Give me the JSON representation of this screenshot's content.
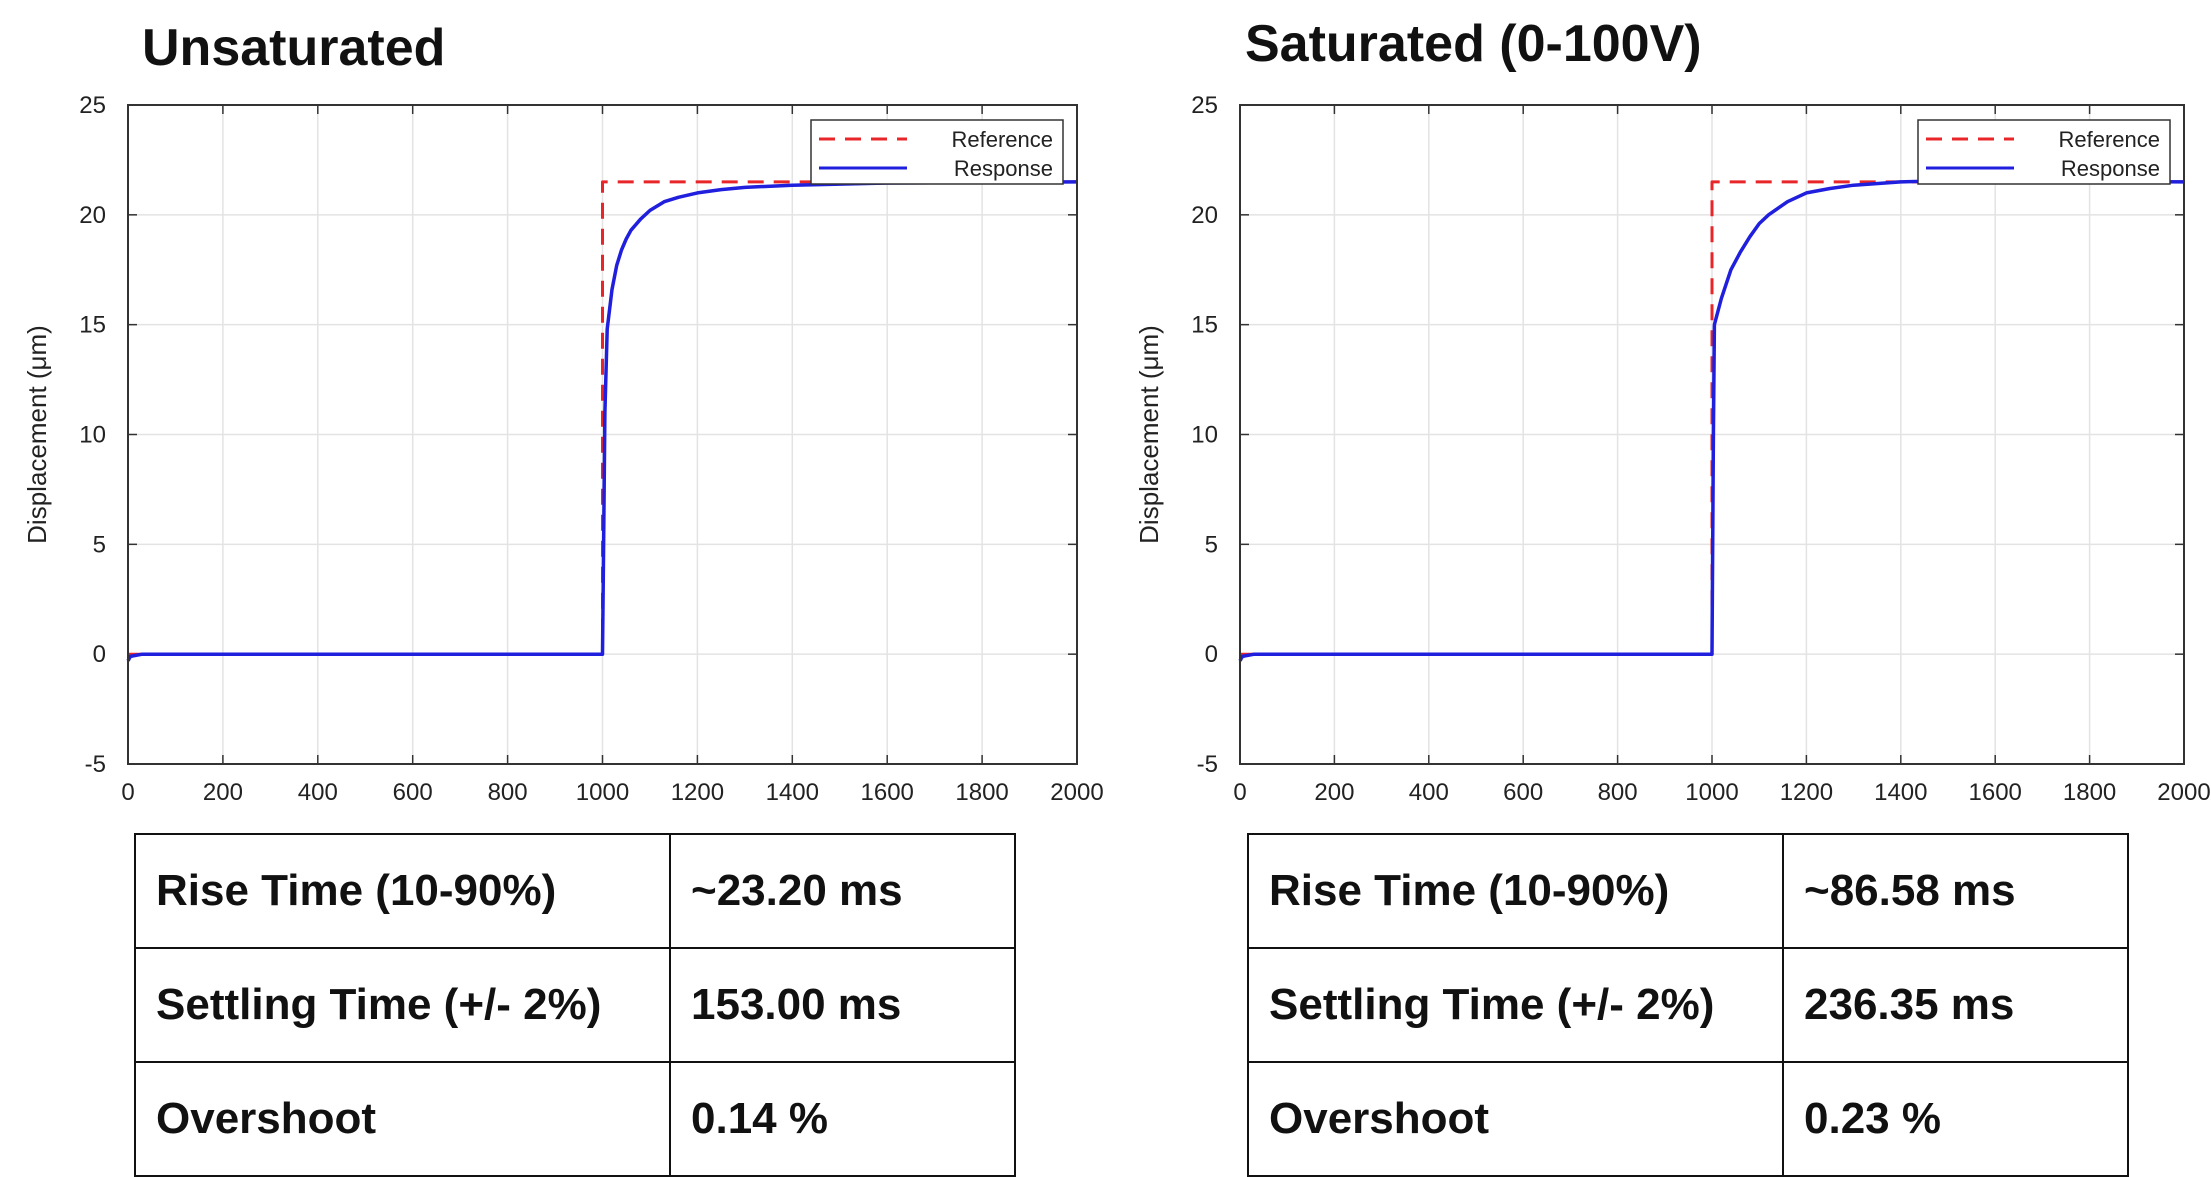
{
  "panels": [
    {
      "title": "Unsaturated",
      "metrics": [
        {
          "label": "Rise Time (10-90%)",
          "value": "~23.20 ms"
        },
        {
          "label": "Settling Time (+/- 2%)",
          "value": "153.00 ms"
        },
        {
          "label": "Overshoot",
          "value": "0.14 %"
        }
      ]
    },
    {
      "title": "Saturated (0-100V)",
      "metrics": [
        {
          "label": "Rise Time (10-90%)",
          "value": "~86.58 ms"
        },
        {
          "label": "Settling Time (+/- 2%)",
          "value": "236.35 ms"
        },
        {
          "label": "Overshoot",
          "value": "0.23 %"
        }
      ]
    }
  ],
  "chart_data": [
    {
      "type": "line",
      "title": "",
      "xlabel": "",
      "ylabel": "Displacement (μm)",
      "xlim": [
        0,
        2000
      ],
      "ylim": [
        -5,
        25
      ],
      "xticks": [
        0,
        200,
        400,
        600,
        800,
        1000,
        1200,
        1400,
        1600,
        1800,
        2000
      ],
      "yticks": [
        -5,
        0,
        5,
        10,
        15,
        20,
        25
      ],
      "grid": true,
      "legend_position": "top-right",
      "series": [
        {
          "name": "Reference",
          "color": "#e8262a",
          "style": "dashed",
          "x": [
            0,
            1000,
            1000,
            2000
          ],
          "y": [
            0,
            0,
            21.5,
            21.5
          ]
        },
        {
          "name": "Response",
          "color": "#1f1fdd",
          "style": "solid",
          "x": [
            0,
            5,
            30,
            1000,
            1002,
            1005,
            1010,
            1020,
            1030,
            1040,
            1050,
            1060,
            1080,
            1100,
            1130,
            1160,
            1200,
            1250,
            1300,
            1400,
            1500,
            1600,
            2000
          ],
          "y": [
            -0.3,
            -0.1,
            0,
            0,
            4.0,
            11.0,
            14.8,
            16.6,
            17.7,
            18.4,
            18.9,
            19.3,
            19.8,
            20.2,
            20.6,
            20.8,
            21.0,
            21.15,
            21.25,
            21.35,
            21.4,
            21.45,
            21.5
          ]
        }
      ]
    },
    {
      "type": "line",
      "title": "",
      "xlabel": "",
      "ylabel": "Displacement (μm)",
      "xlim": [
        0,
        2000
      ],
      "ylim": [
        -5,
        25
      ],
      "xticks": [
        0,
        200,
        400,
        600,
        800,
        1000,
        1200,
        1400,
        1600,
        1800,
        2000
      ],
      "yticks": [
        -5,
        0,
        5,
        10,
        15,
        20,
        25
      ],
      "grid": true,
      "legend_position": "top-right",
      "series": [
        {
          "name": "Reference",
          "color": "#e8262a",
          "style": "dashed",
          "x": [
            0,
            1000,
            1000,
            2000
          ],
          "y": [
            0,
            0,
            21.5,
            21.5
          ]
        },
        {
          "name": "Response",
          "color": "#1f1fdd",
          "style": "solid",
          "x": [
            0,
            5,
            30,
            1000,
            1003,
            1005,
            1010,
            1020,
            1040,
            1060,
            1080,
            1100,
            1120,
            1140,
            1160,
            1200,
            1250,
            1300,
            1400,
            1500,
            1600,
            2000
          ],
          "y": [
            -0.3,
            -0.1,
            0,
            0,
            10.0,
            15.0,
            15.4,
            16.2,
            17.5,
            18.3,
            19.0,
            19.6,
            20.0,
            20.3,
            20.6,
            21.0,
            21.2,
            21.35,
            21.5,
            21.55,
            21.55,
            21.5
          ]
        }
      ]
    }
  ]
}
